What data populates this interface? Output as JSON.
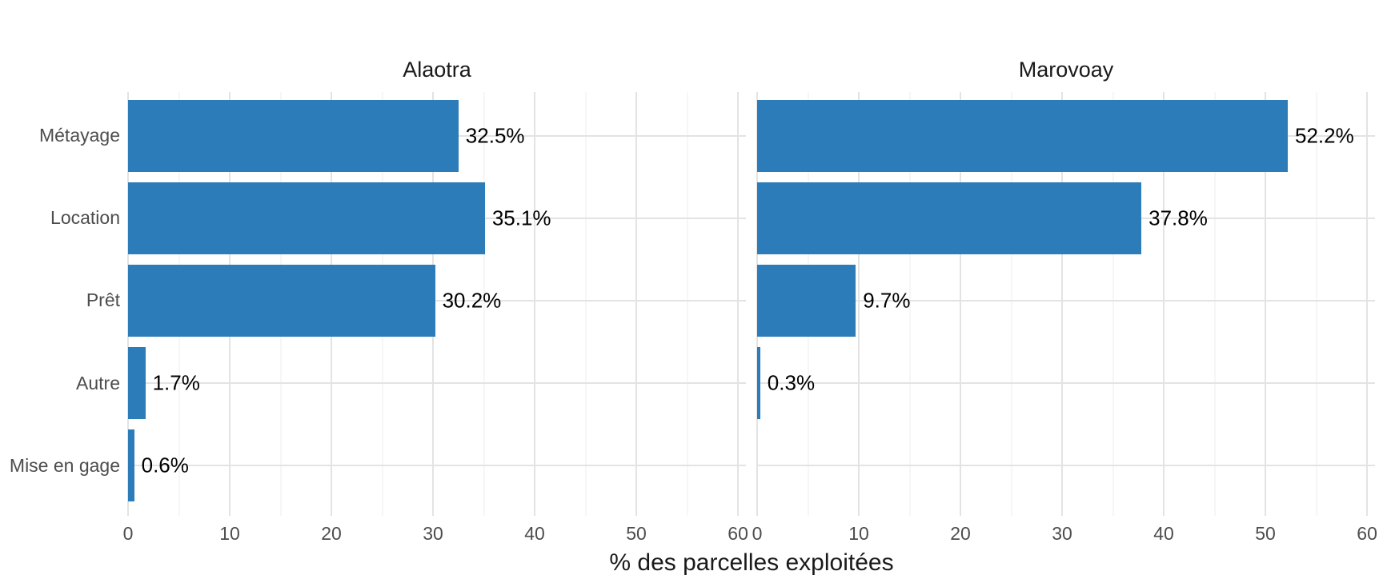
{
  "chart_data": {
    "type": "bar",
    "orientation": "horizontal",
    "categories": [
      "Métayage",
      "Location",
      "Prêt",
      "Autre",
      "Mise en gage"
    ],
    "facets": [
      {
        "title": "Alaotra",
        "values": [
          32.5,
          35.1,
          30.2,
          1.7,
          0.6
        ],
        "labels": [
          "32.5%",
          "35.1%",
          "30.2%",
          "1.7%",
          "0.6%"
        ]
      },
      {
        "title": "Marovoay",
        "values": [
          52.2,
          37.8,
          9.7,
          0.3,
          null
        ],
        "labels": [
          "52.2%",
          "37.8%",
          "9.7%",
          "0.3%",
          null
        ]
      }
    ],
    "xlabel": "% des parcelles exploitées",
    "xticks": [
      0,
      10,
      20,
      30,
      40,
      50,
      60
    ],
    "xlim": [
      0,
      60
    ],
    "x_minor_step": 5,
    "x_major_step": 10,
    "x_expand_right": 0.013,
    "grid": true,
    "legend": "none",
    "bar_color": "#2b7cb8",
    "gridline_color": "#e3e3e3",
    "gridline_minor_color": "#ececec",
    "axis_text_color": "#4d4d4d",
    "title_text_color": "#1a1a1a",
    "value_label_color": "#000000"
  }
}
